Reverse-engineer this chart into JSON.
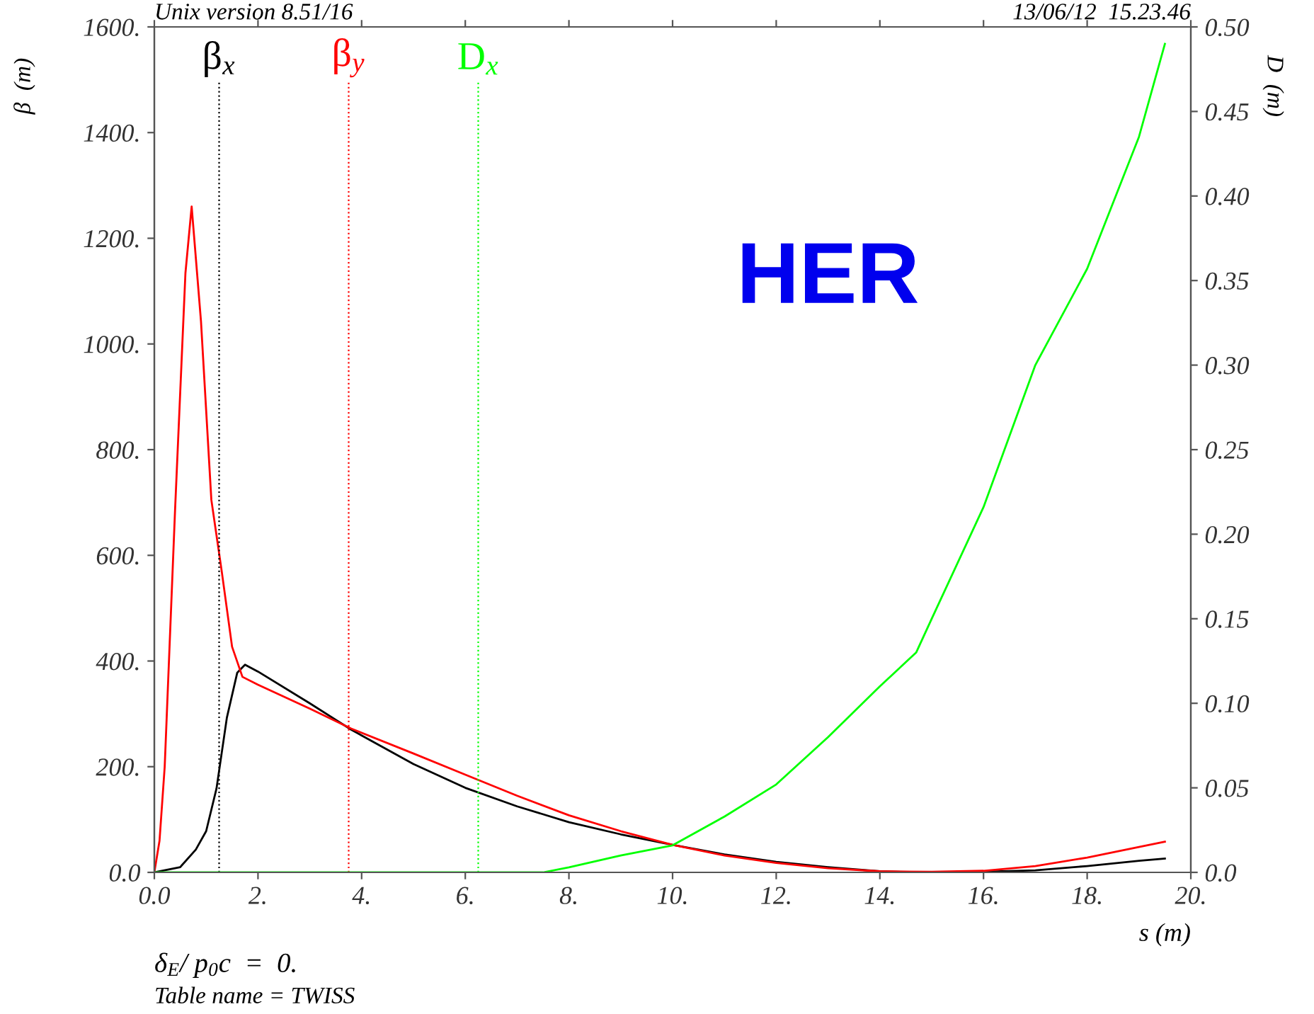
{
  "chart_data": {
    "type": "line",
    "xlabel": "s (m)",
    "ylabel": "β  (m)",
    "y2label": "D  (m)",
    "annotations": [
      "Unix version 8.51/16",
      "13/06/12  15.23.46",
      "HER",
      "δ$_{E}$/ p$_{0}$c  =  0.",
      "Table name = TWISS"
    ],
    "series": [
      {
        "name": "β$_{x}$",
        "color": "#000000",
        "x": [
          0,
          0.5,
          0.8,
          1.0,
          1.2,
          1.4,
          1.6,
          1.75,
          2,
          3,
          3.8,
          5,
          6,
          7,
          8,
          9,
          10,
          11,
          12,
          13,
          14,
          15,
          16,
          17,
          18,
          19,
          19.5
        ],
        "values": [
          0,
          10,
          43,
          78,
          159,
          293,
          378,
          393,
          380,
          320,
          270,
          205,
          160,
          125,
          95,
          72,
          52,
          34,
          20,
          10,
          2,
          0,
          1,
          4,
          12,
          22,
          26
        ]
      },
      {
        "name": "β$_{y}$",
        "color": "#ff0000",
        "x": [
          0,
          0.1,
          0.2,
          0.4,
          0.6,
          0.72,
          0.9,
          1.1,
          1.3,
          1.5,
          1.7,
          2,
          3,
          3.8,
          5,
          6,
          7,
          8,
          9,
          10,
          11,
          12,
          13,
          14,
          15,
          16,
          17,
          18,
          19,
          19.5
        ],
        "values": [
          0,
          60,
          200,
          686,
          1134,
          1260,
          1043,
          705,
          570,
          427,
          370,
          355,
          310,
          272,
          225,
          185,
          145,
          108,
          78,
          52,
          32,
          18,
          8,
          2,
          1,
          3,
          12,
          28,
          48,
          58
        ]
      },
      {
        "name": "D$_{x}$",
        "color": "#00ff00",
        "axis": "y2",
        "x": [
          0,
          7.5,
          8,
          9,
          10,
          11,
          12,
          13,
          14,
          14.7,
          15,
          16,
          17,
          18,
          19,
          19.5
        ],
        "values": [
          0,
          0,
          0.003,
          0.01,
          0.016,
          0.033,
          0.052,
          0.08,
          0.11,
          0.13,
          0.15,
          0.216,
          0.3,
          0.357,
          0.435,
          0.49
        ]
      }
    ],
    "ref_lines": [
      {
        "axis": "x",
        "value": 1.25,
        "color": "#000000",
        "line_style": "dotted"
      },
      {
        "axis": "x",
        "value": 3.75,
        "color": "#ff0000",
        "line_style": "dotted"
      },
      {
        "axis": "x",
        "value": 6.25,
        "color": "#00ff00",
        "line_style": "dotted"
      }
    ],
    "xlim": [
      0,
      20
    ],
    "xticks": [
      {
        "value": 0,
        "label": "0.0"
      },
      {
        "value": 2,
        "label": "2."
      },
      {
        "value": 4,
        "label": "4."
      },
      {
        "value": 6,
        "label": "6."
      },
      {
        "value": 8,
        "label": "8."
      },
      {
        "value": 10,
        "label": "10."
      },
      {
        "value": 12,
        "label": "12."
      },
      {
        "value": 14,
        "label": "14."
      },
      {
        "value": 16,
        "label": "16."
      },
      {
        "value": 18,
        "label": "18."
      },
      {
        "value": 20,
        "label": "20."
      }
    ],
    "ylim": [
      0,
      1600
    ],
    "yticks": [
      {
        "value": 0,
        "label": "0.0"
      },
      {
        "value": 200,
        "label": "200."
      },
      {
        "value": 400,
        "label": "400."
      },
      {
        "value": 600,
        "label": "600."
      },
      {
        "value": 800,
        "label": "800."
      },
      {
        "value": 1000,
        "label": "1000."
      },
      {
        "value": 1200,
        "label": "1200."
      },
      {
        "value": 1400,
        "label": "1400."
      },
      {
        "value": 1600,
        "label": "1600."
      }
    ],
    "y2lim": [
      0,
      0.5
    ],
    "y2ticks": [
      {
        "value": 0,
        "label": "0.0"
      },
      0.05,
      {
        "value": 0.1,
        "label": "0.10"
      },
      0.15,
      {
        "value": 0.2,
        "label": "0.20"
      },
      0.25,
      {
        "value": 0.3,
        "label": "0.30"
      },
      0.35,
      {
        "value": 0.4,
        "label": "0.40"
      },
      0.45,
      {
        "value": 0.5,
        "label": "0.50"
      }
    ],
    "grid": false,
    "legend": false
  }
}
